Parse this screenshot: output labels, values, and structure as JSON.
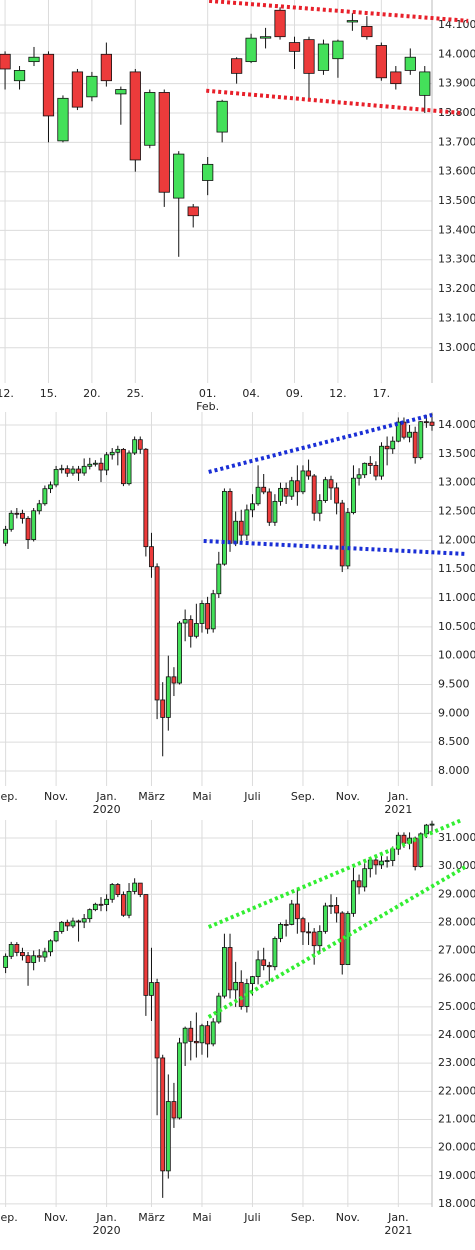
{
  "chart_data": [
    {
      "type": "candlestick",
      "up_color": "#44e05a",
      "down_color": "#ec3b3b",
      "grid": true,
      "xlim": [
        -0.35,
        29.5
      ],
      "ylim": [
        12880,
        14185
      ],
      "yticks": [
        {
          "value": 14100,
          "label": "14.100"
        },
        {
          "value": 14000,
          "label": "14.000"
        },
        {
          "value": 13900,
          "label": "13.900"
        },
        {
          "value": 13800,
          "label": "13.800"
        },
        {
          "value": 13700,
          "label": "13.700"
        },
        {
          "value": 13600,
          "label": "13.600"
        },
        {
          "value": 13500,
          "label": "13.500"
        },
        {
          "value": 13400,
          "label": "13.400"
        },
        {
          "value": 13300,
          "label": "13.300"
        },
        {
          "value": 13200,
          "label": "13.200"
        },
        {
          "value": 13100,
          "label": "13.100"
        },
        {
          "value": 13000,
          "label": "13.000"
        }
      ],
      "xticks": [
        {
          "value": 0,
          "label": "12."
        },
        {
          "value": 3,
          "label": "15."
        },
        {
          "value": 6,
          "label": "20."
        },
        {
          "value": 9,
          "label": "25."
        },
        {
          "value": 14,
          "label": "01.",
          "sublabel": "Feb."
        },
        {
          "value": 17,
          "label": "04."
        },
        {
          "value": 20,
          "label": "09."
        },
        {
          "value": 23,
          "label": "12."
        },
        {
          "value": 26,
          "label": "17."
        }
      ],
      "open": [
        14000,
        13910,
        13975,
        14000,
        13705,
        13940,
        13855,
        14000,
        13865,
        13940,
        13690,
        13870,
        13510,
        13480,
        13570,
        13735,
        13985,
        13975,
        14055,
        14150,
        14040,
        14050,
        13945,
        13985,
        14110,
        14095,
        14030,
        13940,
        13945,
        13860
      ],
      "high": [
        14010,
        13960,
        14025,
        14010,
        13860,
        13950,
        13940,
        14040,
        13890,
        13950,
        13880,
        13880,
        13670,
        13490,
        13650,
        13845,
        13990,
        14070,
        14090,
        14160,
        14060,
        14060,
        14050,
        14050,
        14140,
        14130,
        14040,
        13960,
        14020,
        13960
      ],
      "low": [
        13880,
        13880,
        13960,
        13700,
        13700,
        13810,
        13840,
        13890,
        13760,
        13600,
        13680,
        13480,
        13310,
        13410,
        13520,
        13700,
        13900,
        13970,
        14020,
        14050,
        13950,
        13840,
        13930,
        13920,
        14080,
        14050,
        13910,
        13880,
        13930,
        13800
      ],
      "close": [
        13950,
        13945,
        13990,
        13790,
        13850,
        13820,
        13925,
        13910,
        13880,
        13640,
        13870,
        13530,
        13660,
        13450,
        13625,
        13840,
        13935,
        14055,
        14060,
        14060,
        14010,
        13935,
        14035,
        14045,
        14115,
        14060,
        13920,
        13900,
        13990,
        13940
      ],
      "trendlines": [
        {
          "color": "#e8202a",
          "x": [
            14.1,
            32
          ],
          "y": [
            14182,
            14114
          ]
        },
        {
          "color": "#e8202a",
          "x": [
            13.9,
            31.5
          ],
          "y": [
            13876,
            13800
          ]
        }
      ]
    },
    {
      "type": "candlestick",
      "up_color": "#44e05a",
      "down_color": "#ec3b3b",
      "grid": true,
      "xlim": [
        -1,
        76
      ],
      "ylim": [
        7740,
        14225
      ],
      "yticks": [
        {
          "value": 14000,
          "label": "14.000"
        },
        {
          "value": 13500,
          "label": "13.500"
        },
        {
          "value": 13000,
          "label": "13.000"
        },
        {
          "value": 12500,
          "label": "12.500"
        },
        {
          "value": 12000,
          "label": "12.000"
        },
        {
          "value": 11500,
          "label": "11.500"
        },
        {
          "value": 11000,
          "label": "11.000"
        },
        {
          "value": 10500,
          "label": "10.500"
        },
        {
          "value": 10000,
          "label": "10.000"
        },
        {
          "value": 9500,
          "label": "9.500"
        },
        {
          "value": 9000,
          "label": "9.000"
        },
        {
          "value": 8500,
          "label": "8.500"
        },
        {
          "value": 8000,
          "label": "8.000"
        }
      ],
      "xticks": [
        {
          "value": 0,
          "label": "Sep."
        },
        {
          "value": 9,
          "label": "Nov."
        },
        {
          "value": 18,
          "label": "Jan.",
          "sublabel": "2020"
        },
        {
          "value": 26,
          "label": "März"
        },
        {
          "value": 35,
          "label": "Mai"
        },
        {
          "value": 44,
          "label": "Juli"
        },
        {
          "value": 53,
          "label": "Sep."
        },
        {
          "value": 61,
          "label": "Nov."
        },
        {
          "value": 70,
          "label": "Jan.",
          "sublabel": "2021"
        }
      ],
      "open": [
        11950,
        12191,
        12469,
        12468,
        12381,
        12013,
        12512,
        12634,
        12895,
        12961,
        13229,
        13242,
        13164,
        13236,
        13167,
        13283,
        13319,
        13337,
        13219,
        13483,
        13526,
        13577,
        12982,
        13514,
        13745,
        13579,
        11890,
        11542,
        9232,
        8929,
        9633,
        9525,
        10565,
        10626,
        10336,
        10558,
        10905,
        10465,
        11074,
        11587,
        12848,
        11949,
        12331,
        12090,
        12528,
        12634,
        12920,
        12839,
        12313,
        12675,
        12901,
        12765,
        13033,
        12842,
        13203,
        13116,
        12470,
        12689,
        13051,
        12909,
        12646,
        11556,
        12480,
        13077,
        13137,
        13335,
        13299,
        13114,
        13631,
        13587,
        13719,
        14050,
        13788,
        13874,
        13433,
        14057,
        14050
      ],
      "high": [
        12250,
        12520,
        12560,
        12530,
        12420,
        12560,
        12700,
        12950,
        13020,
        13290,
        13310,
        13300,
        13290,
        13290,
        13420,
        13430,
        13390,
        13430,
        13530,
        13600,
        13640,
        13600,
        13560,
        13800,
        13800,
        13600,
        12130,
        11600,
        9540,
        10000,
        9800,
        10600,
        10800,
        10700,
        10900,
        10960,
        11020,
        11140,
        11800,
        12900,
        12900,
        12500,
        12530,
        12620,
        12800,
        13300,
        13150,
        12900,
        12800,
        13000,
        13000,
        13100,
        13300,
        13300,
        13400,
        13150,
        12800,
        13100,
        13120,
        13000,
        12700,
        12560,
        13300,
        13250,
        13350,
        13460,
        13370,
        13700,
        13800,
        13800,
        14130,
        14130,
        14000,
        13970,
        14070,
        14170,
        14200
      ],
      "low": [
        11900,
        12150,
        12380,
        12290,
        11850,
        11980,
        12450,
        12600,
        12820,
        12920,
        13160,
        13100,
        13120,
        13030,
        13120,
        13230,
        13280,
        13010,
        13130,
        13400,
        13300,
        12940,
        12950,
        13480,
        13500,
        11720,
        11350,
        8900,
        8255,
        8700,
        9300,
        9500,
        10250,
        10140,
        10300,
        10400,
        10380,
        10400,
        11000,
        11560,
        11800,
        11900,
        11950,
        12000,
        12400,
        12600,
        12800,
        12250,
        12250,
        12600,
        12630,
        12700,
        12600,
        12800,
        13050,
        12340,
        12330,
        12650,
        12700,
        12450,
        11450,
        11500,
        12450,
        12950,
        13080,
        13150,
        13040,
        13050,
        13300,
        13500,
        13700,
        13750,
        13700,
        13330,
        13400,
        13950,
        13900
      ],
      "close": [
        12191,
        12469,
        12468,
        12381,
        12013,
        12512,
        12634,
        12895,
        12961,
        13229,
        13242,
        13164,
        13236,
        13167,
        13283,
        13319,
        13337,
        13219,
        13483,
        13526,
        13577,
        12982,
        13514,
        13745,
        13579,
        11890,
        11542,
        9232,
        8929,
        9633,
        9525,
        10565,
        10626,
        10336,
        10558,
        10905,
        10465,
        11074,
        11587,
        12848,
        11949,
        12331,
        12090,
        12528,
        12634,
        12920,
        12839,
        12313,
        12675,
        12901,
        12765,
        13033,
        12842,
        13203,
        13116,
        12470,
        12689,
        13051,
        12909,
        12646,
        11556,
        12480,
        13077,
        13137,
        13335,
        13299,
        13114,
        13631,
        13587,
        13719,
        14050,
        13788,
        13874,
        13433,
        14057,
        14050,
        13993
      ],
      "trendlines": [
        {
          "color": "#1a2fd6",
          "x": [
            36.2,
            76
          ],
          "y": [
            13185,
            14173
          ]
        },
        {
          "color": "#1a2fd6",
          "x": [
            35.3,
            82.2
          ],
          "y": [
            11989,
            11763
          ]
        }
      ]
    },
    {
      "type": "candlestick",
      "up_color": "#44e05a",
      "down_color": "#ec3b3b",
      "grid": true,
      "xlim": [
        -1,
        76
      ],
      "ylim": [
        17890,
        31640
      ],
      "yticks": [
        {
          "value": 31000,
          "label": "31.000"
        },
        {
          "value": 30000,
          "label": "30.000"
        },
        {
          "value": 29000,
          "label": "29.000"
        },
        {
          "value": 28000,
          "label": "28.000"
        },
        {
          "value": 27000,
          "label": "27.000"
        },
        {
          "value": 26000,
          "label": "26.000"
        },
        {
          "value": 25000,
          "label": "25.000"
        },
        {
          "value": 24000,
          "label": "24.000"
        },
        {
          "value": 23000,
          "label": "23.000"
        },
        {
          "value": 22000,
          "label": "22.000"
        },
        {
          "value": 21000,
          "label": "21.000"
        },
        {
          "value": 20000,
          "label": "20.000"
        },
        {
          "value": 19000,
          "label": "19.000"
        },
        {
          "value": 18000,
          "label": "18.000"
        }
      ],
      "xticks": [
        {
          "value": 0,
          "label": "Sep."
        },
        {
          "value": 9,
          "label": "Nov."
        },
        {
          "value": 18,
          "label": "Jan.",
          "sublabel": "2020"
        },
        {
          "value": 26,
          "label": "März"
        },
        {
          "value": 35,
          "label": "Mai"
        },
        {
          "value": 44,
          "label": "Juli"
        },
        {
          "value": 53,
          "label": "Sep."
        },
        {
          "value": 61,
          "label": "Nov."
        },
        {
          "value": 70,
          "label": "Jan.",
          "sublabel": "2021"
        }
      ],
      "open": [
        26400,
        26797,
        27220,
        26935,
        26820,
        26573,
        26817,
        26770,
        26958,
        27347,
        27681,
        28005,
        27876,
        28051,
        28015,
        28135,
        28455,
        28645,
        28635,
        28823,
        29348,
        28990,
        28256,
        29103,
        29398,
        28992,
        25409,
        25865,
        23186,
        19174,
        21637,
        21053,
        23719,
        24242,
        23775,
        23724,
        24331,
        23685,
        24465,
        25383,
        27111,
        25605,
        25871,
        25016,
        25827,
        26075,
        26672,
        26470,
        26428,
        27433,
        27931,
        27930,
        28654,
        28133,
        27666,
        27657,
        27174,
        27683,
        28587,
        28606,
        28336,
        26502,
        28323,
        29480,
        29263,
        29910,
        30218,
        30046,
        30179,
        30200,
        30606,
        31098,
        30814,
        30997,
        29983,
        31148,
        31458
      ],
      "high": [
        26900,
        27310,
        27300,
        27100,
        26950,
        27000,
        27050,
        27100,
        27400,
        27700,
        28050,
        28100,
        28170,
        28100,
        28300,
        28500,
        28700,
        28900,
        29000,
        29400,
        29400,
        29100,
        29400,
        29570,
        29400,
        29000,
        27100,
        26000,
        23300,
        22600,
        22300,
        23900,
        24300,
        24500,
        24800,
        24400,
        24500,
        24600,
        25500,
        27600,
        27600,
        26600,
        26300,
        26000,
        26100,
        27000,
        27100,
        26600,
        27500,
        28000,
        28100,
        28800,
        29200,
        28200,
        28000,
        27800,
        27900,
        28700,
        29000,
        28900,
        28400,
        28400,
        29950,
        29700,
        30100,
        30300,
        30300,
        30400,
        30350,
        30700,
        31200,
        31200,
        31200,
        31050,
        31200,
        31500,
        31600
      ],
      "low": [
        26200,
        26700,
        26800,
        26650,
        25750,
        26300,
        26600,
        26600,
        26800,
        27300,
        27600,
        27700,
        27800,
        27320,
        27800,
        28000,
        28400,
        28400,
        28400,
        28700,
        28900,
        28200,
        28150,
        29000,
        28900,
        24680,
        24500,
        21150,
        18214,
        18900,
        20700,
        21000,
        22900,
        23100,
        23200,
        23300,
        23200,
        23600,
        24400,
        25300,
        25300,
        25000,
        24900,
        24800,
        25400,
        25800,
        26300,
        25900,
        26300,
        27300,
        27500,
        27900,
        27600,
        27200,
        27200,
        26500,
        26900,
        27600,
        28300,
        28000,
        26150,
        26500,
        28200,
        29000,
        29100,
        29600,
        29700,
        29900,
        29950,
        30000,
        30400,
        30650,
        30600,
        29850,
        29950,
        31000,
        31200
      ],
      "close": [
        26797,
        27220,
        26935,
        26820,
        26573,
        26817,
        26770,
        26958,
        27347,
        27681,
        28005,
        27876,
        28051,
        28015,
        28135,
        28455,
        28645,
        28635,
        28823,
        29348,
        28990,
        28256,
        29103,
        29398,
        28992,
        25409,
        25865,
        23186,
        19174,
        21637,
        21053,
        23719,
        24242,
        23775,
        23724,
        24331,
        23685,
        24465,
        25383,
        27111,
        25605,
        25871,
        25016,
        25827,
        26075,
        26672,
        26470,
        26428,
        27433,
        27931,
        27930,
        28654,
        28133,
        27666,
        27657,
        27174,
        27683,
        28587,
        28606,
        28336,
        26502,
        28323,
        29480,
        29263,
        29910,
        30218,
        30046,
        30179,
        30200,
        30606,
        31098,
        30814,
        30997,
        29983,
        31148,
        31458,
        31494
      ],
      "trendlines": [
        {
          "color": "#33ee33",
          "x": [
            36.2,
            81.3
          ],
          "y": [
            27838,
            31640
          ]
        },
        {
          "color": "#33ee33",
          "x": [
            36.2,
            82.2
          ],
          "y": [
            24641,
            30005
          ]
        }
      ]
    }
  ]
}
